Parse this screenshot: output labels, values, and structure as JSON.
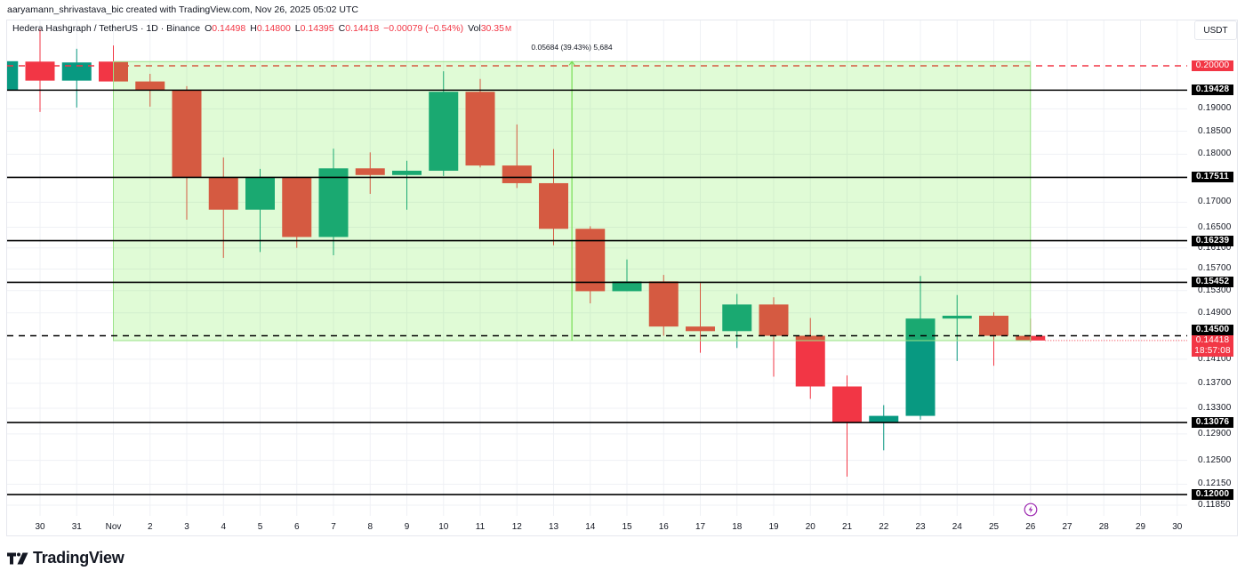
{
  "attribution": "aaryamann_shrivastava_bic created with TradingView.com, Nov 26, 2025 05:02 UTC",
  "legend": {
    "symbol": "Hedera Hashgraph / TetherUS · 1D · Binance",
    "o_label": "O",
    "o": "0.14498",
    "h_label": "H",
    "h": "0.14800",
    "l_label": "L",
    "l": "0.14395",
    "c_label": "C",
    "c": "0.14418",
    "change": "−0.00079 (−0.54%)",
    "vol_label": "Vol",
    "vol": "30.35",
    "vol_unit": "M"
  },
  "currency_button": "USDT",
  "measure_label": "0.05684 (39.43%) 5,684",
  "countdown": "18:57:08",
  "current_price_label": "0.14418",
  "logo_text": "TradingView",
  "icons": {
    "event": "lightning-icon",
    "logo": "tradingview-logo-icon"
  },
  "colors": {
    "up": "#089981",
    "down": "#f23645",
    "level_line": "#000000",
    "resistance_dashed": "#f23645",
    "zone_fill": "rgba(100,235,50,0.2)",
    "zone_border": "#9be38a",
    "measure_line": "#77dd55",
    "grid": "#eff1f5",
    "event_icon": "#9c27b0"
  },
  "chart_data": {
    "type": "candlestick",
    "title": "Hedera Hashgraph / TetherUS · 1D · Binance",
    "xlabel": "",
    "ylabel": "USDT",
    "yscale": "log",
    "ylim": [
      0.117,
      0.2111
    ],
    "grid": true,
    "categories": [
      "Oct 29",
      "Oct 30",
      "Oct 31",
      "Nov 1",
      "Nov 2",
      "Nov 3",
      "Nov 4",
      "Nov 5",
      "Nov 6",
      "Nov 7",
      "Nov 8",
      "Nov 9",
      "Nov 10",
      "Nov 11",
      "Nov 12",
      "Nov 13",
      "Nov 14",
      "Nov 15",
      "Nov 16",
      "Nov 17",
      "Nov 18",
      "Nov 19",
      "Nov 20",
      "Nov 21",
      "Nov 22",
      "Nov 23",
      "Nov 24",
      "Nov 25",
      "Nov 26"
    ],
    "ohlc": [
      [
        0.1942,
        0.2011,
        0.1942,
        0.2011
      ],
      [
        0.201,
        0.2089,
        0.1893,
        0.1965
      ],
      [
        0.1965,
        0.2041,
        0.1903,
        0.2008
      ],
      [
        0.201,
        0.2049,
        0.196,
        0.1963
      ],
      [
        0.1963,
        0.1981,
        0.1905,
        0.1943
      ],
      [
        0.1943,
        0.1952,
        0.1665,
        0.1751
      ],
      [
        0.1751,
        0.1793,
        0.1591,
        0.1685
      ],
      [
        0.1685,
        0.1769,
        0.1602,
        0.1751
      ],
      [
        0.1751,
        0.1751,
        0.161,
        0.1631
      ],
      [
        0.1631,
        0.1812,
        0.1596,
        0.177
      ],
      [
        0.177,
        0.1804,
        0.1717,
        0.1756
      ],
      [
        0.1756,
        0.1786,
        0.1685,
        0.1765
      ],
      [
        0.1765,
        0.1987,
        0.1754,
        0.1939
      ],
      [
        0.1939,
        0.1969,
        0.1772,
        0.1776
      ],
      [
        0.1776,
        0.1865,
        0.1729,
        0.1739
      ],
      [
        0.1739,
        0.1811,
        0.1615,
        0.1647
      ],
      [
        0.1647,
        0.1652,
        0.1507,
        0.1529
      ],
      [
        0.1529,
        0.1588,
        0.1529,
        0.1547
      ],
      [
        0.1547,
        0.1559,
        0.145,
        0.1466
      ],
      [
        0.1466,
        0.1544,
        0.1421,
        0.1458
      ],
      [
        0.1458,
        0.1524,
        0.1429,
        0.1505
      ],
      [
        0.1505,
        0.1518,
        0.1381,
        0.145
      ],
      [
        0.145,
        0.1481,
        0.1345,
        0.1365
      ],
      [
        0.1365,
        0.1383,
        0.1226,
        0.1308
      ],
      [
        0.1308,
        0.1335,
        0.1265,
        0.1318
      ],
      [
        0.1318,
        0.1557,
        0.1312,
        0.148
      ],
      [
        0.148,
        0.1522,
        0.1407,
        0.1485
      ],
      [
        0.1485,
        0.1491,
        0.1399,
        0.145
      ],
      [
        0.14498,
        0.148,
        0.14395,
        0.14418
      ]
    ],
    "ohlc_fields": [
      "open",
      "high",
      "low",
      "close"
    ],
    "x_ticks": [
      {
        "index": 1,
        "label": "30"
      },
      {
        "index": 2,
        "label": "31"
      },
      {
        "index": 3,
        "label": "Nov"
      },
      {
        "index": 4,
        "label": "2"
      },
      {
        "index": 5,
        "label": "3"
      },
      {
        "index": 6,
        "label": "4"
      },
      {
        "index": 7,
        "label": "5"
      },
      {
        "index": 8,
        "label": "6"
      },
      {
        "index": 9,
        "label": "7"
      },
      {
        "index": 10,
        "label": "8"
      },
      {
        "index": 11,
        "label": "9"
      },
      {
        "index": 12,
        "label": "10"
      },
      {
        "index": 13,
        "label": "11"
      },
      {
        "index": 14,
        "label": "12"
      },
      {
        "index": 15,
        "label": "13"
      },
      {
        "index": 16,
        "label": "14"
      },
      {
        "index": 17,
        "label": "15"
      },
      {
        "index": 18,
        "label": "16"
      },
      {
        "index": 19,
        "label": "17"
      },
      {
        "index": 20,
        "label": "18"
      },
      {
        "index": 21,
        "label": "19"
      },
      {
        "index": 22,
        "label": "20"
      },
      {
        "index": 23,
        "label": "21"
      },
      {
        "index": 24,
        "label": "22"
      },
      {
        "index": 25,
        "label": "23"
      },
      {
        "index": 26,
        "label": "24"
      },
      {
        "index": 27,
        "label": "25"
      },
      {
        "index": 28,
        "label": "26"
      },
      {
        "index": 29,
        "label": "27"
      },
      {
        "index": 30,
        "label": "28"
      },
      {
        "index": 31,
        "label": "29"
      },
      {
        "index": 32,
        "label": "30"
      }
    ],
    "y_ticks": [
      {
        "price": 0.19,
        "label": "0.19000"
      },
      {
        "price": 0.185,
        "label": "0.18500"
      },
      {
        "price": 0.18,
        "label": "0.18000"
      },
      {
        "price": 0.17,
        "label": "0.17000"
      },
      {
        "price": 0.165,
        "label": "0.16500"
      },
      {
        "price": 0.161,
        "label": "0.16100"
      },
      {
        "price": 0.157,
        "label": "0.15700"
      },
      {
        "price": 0.153,
        "label": "0.15300"
      },
      {
        "price": 0.149,
        "label": "0.14900"
      },
      {
        "price": 0.141,
        "label": "0.14100"
      },
      {
        "price": 0.137,
        "label": "0.13700"
      },
      {
        "price": 0.133,
        "label": "0.13300"
      },
      {
        "price": 0.129,
        "label": "0.12900"
      },
      {
        "price": 0.125,
        "label": "0.12500"
      },
      {
        "price": 0.1215,
        "label": "0.12150"
      },
      {
        "price": 0.1185,
        "label": "0.11850"
      }
    ],
    "levels": [
      {
        "price": 0.2,
        "label": "0.20000",
        "style": "dashed",
        "kind": "resistance-red"
      },
      {
        "price": 0.19428,
        "label": "0.19428",
        "style": "solid",
        "kind": "black"
      },
      {
        "price": 0.17511,
        "label": "0.17511",
        "style": "solid",
        "kind": "black"
      },
      {
        "price": 0.16239,
        "label": "0.16239",
        "style": "solid",
        "kind": "black"
      },
      {
        "price": 0.15452,
        "label": "0.15452",
        "style": "solid",
        "kind": "black"
      },
      {
        "price": 0.145,
        "label": "0.14500",
        "style": "dashed",
        "kind": "black"
      },
      {
        "price": 0.13076,
        "label": "0.13076",
        "style": "solid",
        "kind": "black"
      },
      {
        "price": 0.12,
        "label": "0.12000",
        "style": "solid",
        "kind": "black"
      }
    ],
    "range_zone": {
      "start_index": 3,
      "end_index": 28,
      "top": 0.201,
      "bottom": 0.14416,
      "change": 0.05684,
      "change_pct": 39.43,
      "bars": "5,684",
      "measure_index": 15.5
    },
    "current_price": 0.14418,
    "event_marker_index": 28,
    "annotations": [
      "0.05684 (39.43%) 5,684"
    ]
  }
}
